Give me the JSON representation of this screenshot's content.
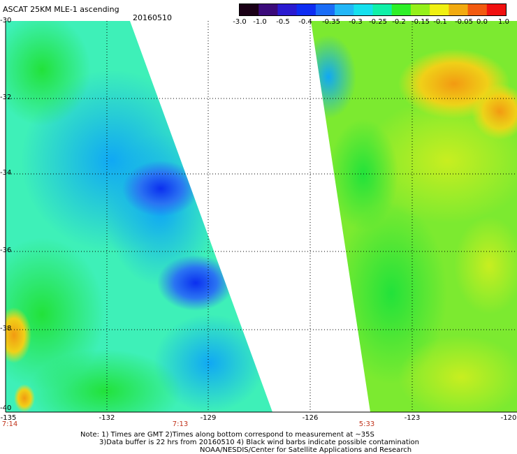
{
  "header": {
    "title": "ASCAT 25KM MLE-1 ascending",
    "date": "20160510"
  },
  "colorbar": {
    "labels": [
      "-3.0",
      "-1.0",
      "-0.5",
      "-0.4",
      "-0.35",
      "-0.3",
      "-0.25",
      "-0.2",
      "-0.15",
      "-0.1",
      "-0.05",
      "0.0",
      "1.0"
    ],
    "colors": [
      "#1a0016",
      "#3b0a7a",
      "#2a1ad0",
      "#0d2cf2",
      "#1a6cf6",
      "#22b6f7",
      "#15e0ee",
      "#10f0a8",
      "#2ef028",
      "#95f01a",
      "#f0f012",
      "#f2aa10",
      "#f25a10",
      "#f01010"
    ]
  },
  "axes": {
    "lat_labels": [
      "-30",
      "-32",
      "-34",
      "-36",
      "-38",
      "-40"
    ],
    "lon_labels": [
      "-135",
      "-132",
      "-129",
      "-126",
      "-123",
      "-120"
    ],
    "time_labels": [
      "7:14",
      "7:13",
      "5:33"
    ]
  },
  "footer": {
    "line1": "Note: 1) Times are GMT 2)Times along bottom correspond to measurement at ~35S",
    "line2": "3)Data buffer is 22 hrs from 20160510 4) Black wind barbs indicate possible contamination",
    "line3": "NOAA/NESDIS/Center for Satellite Applications and Research"
  }
}
